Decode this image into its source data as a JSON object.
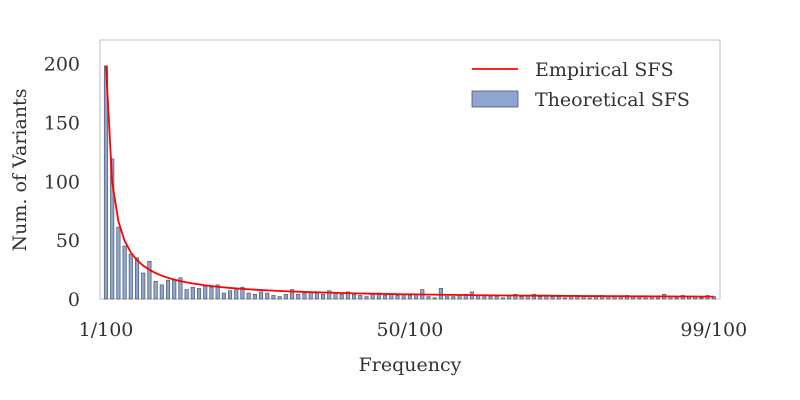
{
  "chart_data": {
    "type": "bar",
    "xlabel": "Frequency",
    "ylabel": "Num. of Variants",
    "xlim": [
      1,
      100
    ],
    "ylim": [
      0,
      220
    ],
    "x_ticks": [
      {
        "x": 1,
        "label": "1/100"
      },
      {
        "x": 50,
        "label": "50/100"
      },
      {
        "x": 99,
        "label": "99/100"
      }
    ],
    "y_ticks": [
      0,
      50,
      100,
      150,
      200
    ],
    "grid": false,
    "legend_position": "top-right",
    "series": [
      {
        "name": "Empirical SFS",
        "type": "line",
        "color": "#ff0000",
        "x": [
          1,
          2,
          3,
          4,
          5,
          6,
          7,
          8,
          9,
          10,
          11,
          12,
          13,
          14,
          15,
          16,
          17,
          18,
          19,
          20,
          21,
          22,
          23,
          24,
          25,
          26,
          27,
          28,
          29,
          30,
          31,
          32,
          33,
          34,
          35,
          36,
          37,
          38,
          39,
          40,
          41,
          42,
          43,
          44,
          45,
          46,
          47,
          48,
          49,
          50,
          51,
          52,
          53,
          54,
          55,
          56,
          57,
          58,
          59,
          60,
          61,
          62,
          63,
          64,
          65,
          66,
          67,
          68,
          69,
          70,
          71,
          72,
          73,
          74,
          75,
          76,
          77,
          78,
          79,
          80,
          81,
          82,
          83,
          84,
          85,
          86,
          87,
          88,
          89,
          90,
          91,
          92,
          93,
          94,
          95,
          96,
          97,
          98,
          99
        ],
        "values": [
          198,
          99,
          66,
          49.5,
          39.6,
          33,
          28.3,
          24.8,
          22,
          19.8,
          18,
          16.5,
          15.2,
          14.1,
          13.2,
          12.4,
          11.6,
          11,
          10.4,
          9.9,
          9.4,
          9,
          8.6,
          8.3,
          7.9,
          7.6,
          7.3,
          7.1,
          6.8,
          6.6,
          6.4,
          6.2,
          6,
          5.8,
          5.7,
          5.5,
          5.4,
          5.2,
          5.1,
          5,
          4.8,
          4.7,
          4.6,
          4.5,
          4.4,
          4.3,
          4.2,
          4.1,
          4,
          4,
          3.9,
          3.8,
          3.7,
          3.7,
          3.6,
          3.5,
          3.5,
          3.4,
          3.4,
          3.3,
          3.2,
          3.2,
          3.1,
          3.1,
          3,
          3,
          3,
          2.9,
          2.9,
          2.8,
          2.8,
          2.8,
          2.7,
          2.7,
          2.6,
          2.6,
          2.6,
          2.5,
          2.5,
          2.5,
          2.4,
          2.4,
          2.4,
          2.4,
          2.3,
          2.3,
          2.3,
          2.3,
          2.2,
          2.2,
          2.2,
          2.2,
          2.1,
          2.1,
          2.1,
          2.1,
          2,
          2,
          2
        ]
      },
      {
        "name": "Theoretical SFS",
        "type": "bar",
        "color": "#8ea6cf",
        "edge_color": "#4f5a66",
        "x": [
          1,
          2,
          3,
          4,
          5,
          6,
          7,
          8,
          9,
          10,
          11,
          12,
          13,
          14,
          15,
          16,
          17,
          18,
          19,
          20,
          21,
          22,
          23,
          24,
          25,
          26,
          27,
          28,
          29,
          30,
          31,
          32,
          33,
          34,
          35,
          36,
          37,
          38,
          39,
          40,
          41,
          42,
          43,
          44,
          45,
          46,
          47,
          48,
          49,
          50,
          51,
          52,
          53,
          54,
          55,
          56,
          57,
          58,
          59,
          60,
          61,
          62,
          63,
          64,
          65,
          66,
          67,
          68,
          69,
          70,
          71,
          72,
          73,
          74,
          75,
          76,
          77,
          78,
          79,
          80,
          81,
          82,
          83,
          84,
          85,
          86,
          87,
          88,
          89,
          90,
          91,
          92,
          93,
          94,
          95,
          96,
          97,
          98,
          99
        ],
        "values": [
          198,
          119,
          61,
          45,
          38,
          35,
          22,
          32,
          15,
          12,
          16,
          16,
          18,
          8,
          10,
          9,
          11,
          10,
          12,
          5,
          7,
          8,
          10,
          5,
          4,
          6,
          5,
          3,
          2,
          4,
          8,
          4,
          5,
          6,
          5,
          4,
          7,
          5,
          4,
          6,
          4,
          3,
          2,
          4,
          5,
          3,
          4,
          3,
          4,
          3,
          4,
          8,
          2,
          1,
          9,
          2,
          2,
          3,
          4,
          6,
          3,
          2,
          2,
          2,
          1,
          3,
          4,
          2,
          3,
          4,
          2,
          3,
          2,
          2,
          1,
          3,
          2,
          2,
          1,
          2,
          3,
          2,
          2,
          2,
          3,
          2,
          1,
          2,
          2,
          1,
          4,
          2,
          1,
          3,
          2,
          2,
          1,
          3,
          2
        ]
      }
    ]
  }
}
